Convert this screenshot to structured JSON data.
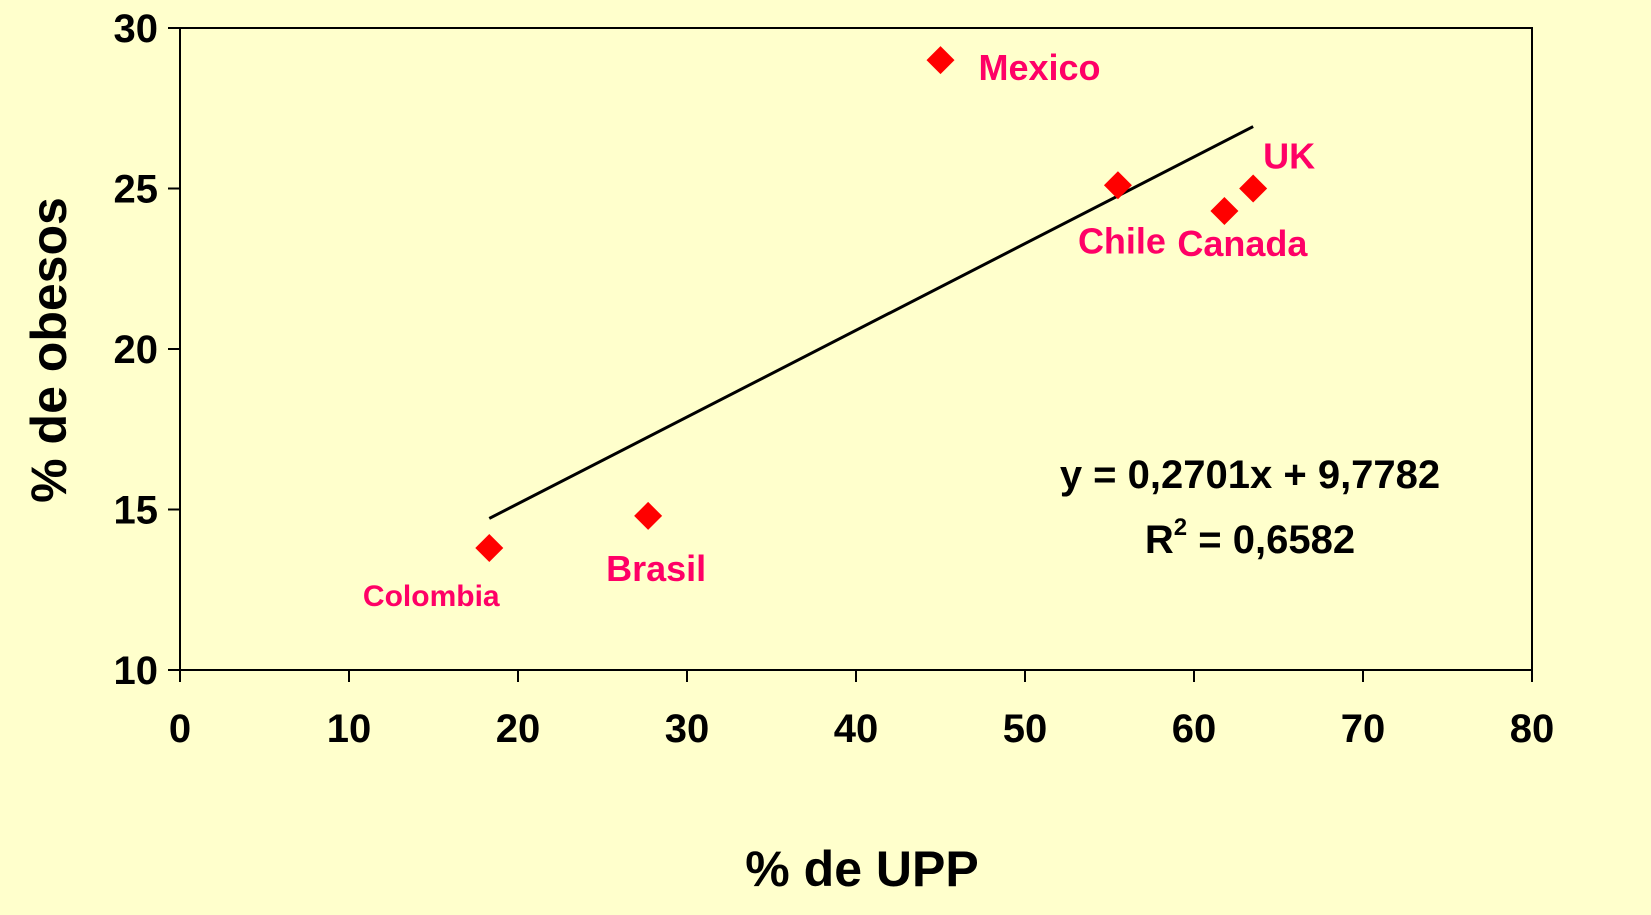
{
  "chart_data": {
    "type": "scatter",
    "title": "",
    "xlabel": "% de UPP",
    "ylabel": "% de obesos",
    "xlim": [
      0,
      80
    ],
    "ylim": [
      10,
      30
    ],
    "xticks": [
      0,
      10,
      20,
      30,
      40,
      50,
      60,
      70,
      80
    ],
    "yticks": [
      10,
      15,
      20,
      25,
      30
    ],
    "xtick_labels": [
      "0",
      "10",
      "20",
      "30",
      "40",
      "50",
      "60",
      "70",
      "80"
    ],
    "ytick_labels": [
      "10",
      "15",
      "20",
      "25",
      "30"
    ],
    "grid": false,
    "points": [
      {
        "label": "Colombia",
        "x": 18.3,
        "y": 13.8
      },
      {
        "label": "Brasil",
        "x": 27.7,
        "y": 14.8
      },
      {
        "label": "Mexico",
        "x": 45.0,
        "y": 29.0
      },
      {
        "label": "Chile",
        "x": 55.5,
        "y": 25.1
      },
      {
        "label": "Canada",
        "x": 61.8,
        "y": 24.3
      },
      {
        "label": "UK",
        "x": 63.5,
        "y": 25.0
      }
    ],
    "trendline": {
      "x_start": 18.3,
      "x_end": 63.5,
      "slope": 0.2701,
      "intercept": 9.7782
    },
    "equation": "y = 0,2701x + 9,7782",
    "r2_prefix": "R",
    "r2_exponent": "2",
    "r2_value": " = 0,6582",
    "colors": {
      "background": "#ffffcc",
      "marker": "#ff0000",
      "point_label": "#ff0066",
      "axis": "#000000",
      "trendline": "#000000"
    }
  }
}
